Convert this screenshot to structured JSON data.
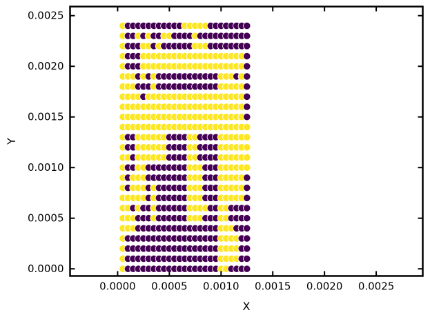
{
  "chart_data": {
    "type": "scatter",
    "title": "",
    "xlabel": "X",
    "ylabel": "Y",
    "xlim": [
      -0.00046,
      0.00295
    ],
    "ylim": [
      -7e-05,
      0.00259
    ],
    "grid": false,
    "legend": "none",
    "xticks": [
      0.0,
      0.0005,
      0.001,
      0.0015,
      0.002,
      0.0025
    ],
    "xtick_labels": [
      "0.0000",
      "0.0005",
      "0.0010",
      "0.0015",
      "0.0020",
      "0.0025"
    ],
    "yticks": [
      0.0,
      0.0005,
      0.001,
      0.0015,
      0.002,
      0.0025
    ],
    "ytick_labels": [
      "0.0000",
      "0.0005",
      "0.0010",
      "0.0015",
      "0.0020",
      "0.0025"
    ],
    "grid_points": {
      "x_start": 5e-05,
      "x_step": 5e-05,
      "nx": 25,
      "y_start": 0.0,
      "y_step": 0.0001,
      "ny": 25
    },
    "colormap": {
      "0": "#440154",
      "1": "#fde725"
    },
    "rows_top_to_bottom": [
      "1000000000001111100000000",
      "1001010011000010000000000",
      "1000110100000011100000000",
      "1000111111111111111111110",
      "1000111111111111111111110",
      "1110101000000000000111010",
      "1110001000000000000111110",
      "1111011111111111111111110",
      "1111111111111111111111110",
      "1111111111111111111111110",
      "1111111111111111111111111",
      "1001111110000110000111111",
      "1001111110000110000111111",
      "1101111110000110000111111",
      "1001100000000111000111111",
      "1011100000000111000111110",
      "1011101000000111000111110",
      "1111101000000111000111110",
      "1101001000000111100110000",
      "1110001000000111000110000",
      "1110000000000000000111000",
      "1000000000000000000111100",
      "1000000000000000000111100",
      "1000000000000000000111100",
      "1000000000000000000110000"
    ]
  }
}
